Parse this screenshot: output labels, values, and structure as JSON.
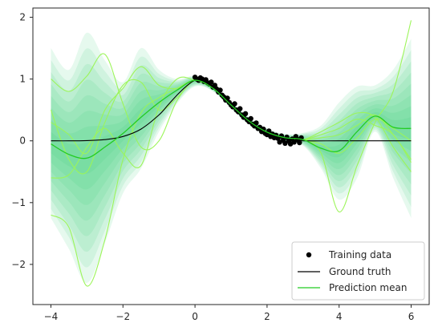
{
  "chart_data": {
    "type": "line",
    "title": "",
    "xlabel": "",
    "ylabel": "",
    "xlim": [
      -4.5,
      6.5
    ],
    "ylim": [
      -2.65,
      2.15
    ],
    "xticks": [
      -4,
      -2,
      0,
      2,
      4,
      6
    ],
    "xtick_labels": [
      "−4",
      "−2",
      "0",
      "2",
      "4",
      "6"
    ],
    "yticks": [
      -2,
      -1,
      0,
      1,
      2
    ],
    "ytick_labels": [
      "−2",
      "−1",
      "0",
      "1",
      "2"
    ],
    "grid": false,
    "legend_position": "bottom-right",
    "colors": {
      "band": "#2ecc71",
      "mean": "#22cc22",
      "samples": "#9cf55a",
      "truth": "#000000",
      "points": "#000000"
    },
    "legend": [
      {
        "key": "training",
        "label": "Training data"
      },
      {
        "key": "truth",
        "label": "Ground truth"
      },
      {
        "key": "mean",
        "label": "Prediction mean"
      }
    ],
    "ground_truth": {
      "name": "Ground truth",
      "x": [
        -4,
        -3.5,
        -3,
        -2.5,
        -2,
        -1.5,
        -1,
        -0.75,
        -0.5,
        -0.25,
        0,
        0.25,
        0.5,
        0.75,
        1,
        1.25,
        1.5,
        1.75,
        2,
        2.25,
        2.5,
        2.75,
        3,
        4,
        5,
        6
      ],
      "y": [
        0,
        0,
        0.004,
        0.02,
        0.07,
        0.19,
        0.42,
        0.58,
        0.74,
        0.88,
        0.98,
        0.97,
        0.88,
        0.74,
        0.58,
        0.42,
        0.29,
        0.19,
        0.11,
        0.06,
        0.03,
        0.015,
        0,
        0,
        0,
        0
      ]
    },
    "prediction_mean": {
      "name": "Prediction mean",
      "x": [
        -4,
        -3.5,
        -3,
        -2.5,
        -2,
        -1.5,
        -1,
        -0.5,
        0,
        0.5,
        1,
        1.5,
        2,
        2.5,
        3,
        3.5,
        4,
        4.5,
        5,
        5.5,
        6
      ],
      "y": [
        -0.05,
        -0.22,
        -0.28,
        -0.1,
        0.12,
        0.38,
        0.62,
        0.82,
        0.98,
        0.85,
        0.58,
        0.32,
        0.14,
        0.05,
        0.02,
        -0.12,
        -0.16,
        0.15,
        0.4,
        0.22,
        0.2
      ]
    },
    "confidence_band": {
      "x": [
        -4,
        -3.5,
        -3,
        -2.5,
        -2,
        -1.5,
        -1,
        -0.5,
        0,
        0.5,
        1,
        1.5,
        2,
        2.5,
        3,
        3.5,
        4,
        4.5,
        5,
        5.5,
        6
      ],
      "lower": [
        -1.25,
        -1.75,
        -2.3,
        -1.65,
        -0.85,
        -0.45,
        0.15,
        0.6,
        0.88,
        0.8,
        0.52,
        0.26,
        0.07,
        -0.03,
        -0.08,
        -0.45,
        -0.95,
        -0.6,
        0.15,
        -0.6,
        -1.25
      ],
      "upper": [
        1.5,
        1.15,
        1.75,
        1.3,
        0.95,
        1.5,
        1.15,
        1.0,
        1.05,
        0.9,
        0.64,
        0.38,
        0.2,
        0.11,
        0.13,
        0.25,
        0.62,
        0.88,
        0.9,
        1.15,
        1.65
      ],
      "levels": 8
    },
    "samples": [
      {
        "x": [
          -4,
          -3.5,
          -3,
          -2.5,
          -2,
          -1.5,
          -1,
          -0.5,
          0,
          0.5,
          1,
          1.5,
          2,
          2.5,
          3,
          3.5,
          4,
          4.5,
          5,
          5.5,
          6
        ],
        "y": [
          -1.2,
          -1.4,
          -2.35,
          -1.6,
          -0.3,
          0.45,
          0.7,
          0.85,
          0.98,
          0.85,
          0.58,
          0.32,
          0.14,
          0.05,
          0.02,
          -0.2,
          -1.15,
          -0.4,
          0.3,
          0.8,
          1.95
        ]
      },
      {
        "x": [
          -4,
          -3.5,
          -3,
          -2.5,
          -2,
          -1.5,
          -1,
          -0.5,
          0,
          0.5,
          1,
          1.5,
          2,
          2.5,
          3,
          3.5,
          4,
          4.5,
          5,
          5.5,
          6
        ],
        "y": [
          1.0,
          0.8,
          1.05,
          1.4,
          0.6,
          -0.1,
          0.0,
          0.65,
          0.98,
          0.85,
          0.58,
          0.32,
          0.14,
          0.05,
          0.02,
          0.1,
          0.2,
          0.35,
          0.25,
          0.1,
          -0.35
        ]
      },
      {
        "x": [
          -4,
          -3.5,
          -3,
          -2.5,
          -2,
          -1.5,
          -1,
          -0.5,
          0,
          0.5,
          1,
          1.5,
          2,
          2.5,
          3,
          3.5,
          4,
          4.5,
          5,
          5.5,
          6
        ],
        "y": [
          0.5,
          -0.3,
          -0.5,
          0.3,
          0.9,
          0.95,
          0.5,
          0.7,
          0.98,
          0.85,
          0.58,
          0.32,
          0.14,
          0.05,
          0.02,
          0.15,
          0.3,
          0.45,
          0.38,
          -0.1,
          -0.5
        ]
      },
      {
        "x": [
          -4,
          -3.5,
          -3,
          -2.5,
          -2,
          -1.5,
          -1,
          -0.5,
          0,
          0.5,
          1,
          1.5,
          2,
          2.5,
          3,
          3.5,
          4,
          4.5,
          5,
          5.5,
          6
        ],
        "y": [
          -0.6,
          -0.55,
          -0.1,
          0.2,
          -0.2,
          -0.4,
          0.55,
          1.0,
          0.98,
          0.85,
          0.58,
          0.32,
          0.14,
          0.05,
          0.02,
          0.05,
          0.1,
          0.25,
          0.42,
          0.1,
          -0.3
        ]
      },
      {
        "x": [
          -4,
          -3.5,
          -3,
          -2.5,
          -2,
          -1.5,
          -1,
          -0.5,
          0,
          0.5,
          1,
          1.5,
          2,
          2.5,
          3,
          3.5,
          4,
          4.5,
          5,
          5.5,
          6
        ],
        "y": [
          0.3,
          0.1,
          -0.2,
          0.5,
          0.85,
          1.2,
          0.9,
          0.85,
          0.98,
          0.85,
          0.58,
          0.32,
          0.14,
          0.05,
          0.02,
          -0.05,
          -0.2,
          0.05,
          0.35,
          0.2,
          0.0
        ]
      }
    ],
    "training_data": {
      "name": "Training data",
      "x": [
        0.0,
        0.05,
        0.1,
        0.15,
        0.2,
        0.25,
        0.3,
        0.35,
        0.4,
        0.45,
        0.5,
        0.55,
        0.6,
        0.65,
        0.7,
        0.75,
        0.8,
        0.85,
        0.9,
        0.95,
        1.0,
        1.05,
        1.1,
        1.15,
        1.2,
        1.25,
        1.3,
        1.35,
        1.4,
        1.45,
        1.5,
        1.55,
        1.6,
        1.65,
        1.7,
        1.75,
        1.8,
        1.85,
        1.9,
        1.95,
        2.0,
        2.05,
        2.1,
        2.15,
        2.2,
        2.25,
        2.3,
        2.35,
        2.4,
        2.45,
        2.5,
        2.55,
        2.6,
        2.65,
        2.7,
        2.75,
        2.8,
        2.85,
        2.9,
        2.95
      ],
      "y": [
        1.03,
        1.0,
        0.98,
        1.02,
        1.0,
        0.96,
        0.99,
        0.94,
        0.92,
        0.95,
        0.87,
        0.9,
        0.84,
        0.79,
        0.82,
        0.74,
        0.71,
        0.66,
        0.69,
        0.62,
        0.58,
        0.55,
        0.6,
        0.5,
        0.47,
        0.52,
        0.42,
        0.38,
        0.44,
        0.34,
        0.31,
        0.36,
        0.27,
        0.24,
        0.29,
        0.2,
        0.22,
        0.15,
        0.19,
        0.12,
        0.1,
        0.16,
        0.07,
        0.11,
        0.05,
        0.09,
        0.04,
        -0.02,
        0.08,
        0.01,
        -0.04,
        0.06,
        0.0,
        -0.05,
        0.03,
        -0.02,
        0.07,
        0.02,
        -0.03,
        0.05
      ]
    }
  }
}
